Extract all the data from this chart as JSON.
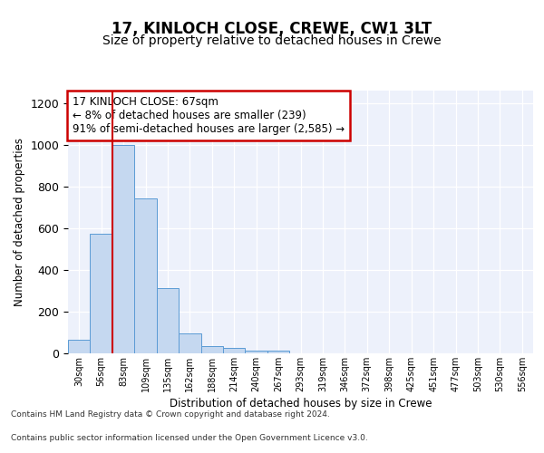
{
  "title1": "17, KINLOCH CLOSE, CREWE, CW1 3LT",
  "title2": "Size of property relative to detached houses in Crewe",
  "xlabel": "Distribution of detached houses by size in Crewe",
  "ylabel": "Number of detached properties",
  "bar_values": [
    65,
    575,
    1000,
    745,
    315,
    95,
    35,
    25,
    15,
    15,
    0,
    0,
    0,
    0,
    0,
    0,
    0,
    0,
    0,
    0,
    0
  ],
  "categories": [
    "30sqm",
    "56sqm",
    "83sqm",
    "109sqm",
    "135sqm",
    "162sqm",
    "188sqm",
    "214sqm",
    "240sqm",
    "267sqm",
    "293sqm",
    "319sqm",
    "346sqm",
    "372sqm",
    "398sqm",
    "425sqm",
    "451sqm",
    "477sqm",
    "503sqm",
    "530sqm",
    "556sqm"
  ],
  "bar_color": "#c5d8f0",
  "bar_edge_color": "#5b9bd5",
  "vline_x": 1.5,
  "vline_color": "#cc0000",
  "annotation_text": "17 KINLOCH CLOSE: 67sqm\n← 8% of detached houses are smaller (239)\n91% of semi-detached houses are larger (2,585) →",
  "annotation_box_color": "#ffffff",
  "annotation_box_edge_color": "#cc0000",
  "ylim": [
    0,
    1260
  ],
  "yticks": [
    0,
    200,
    400,
    600,
    800,
    1000,
    1200
  ],
  "footer_line1": "Contains HM Land Registry data © Crown copyright and database right 2024.",
  "footer_line2": "Contains public sector information licensed under the Open Government Licence v3.0.",
  "bg_color": "#edf1fb",
  "title1_fontsize": 12,
  "title2_fontsize": 10
}
